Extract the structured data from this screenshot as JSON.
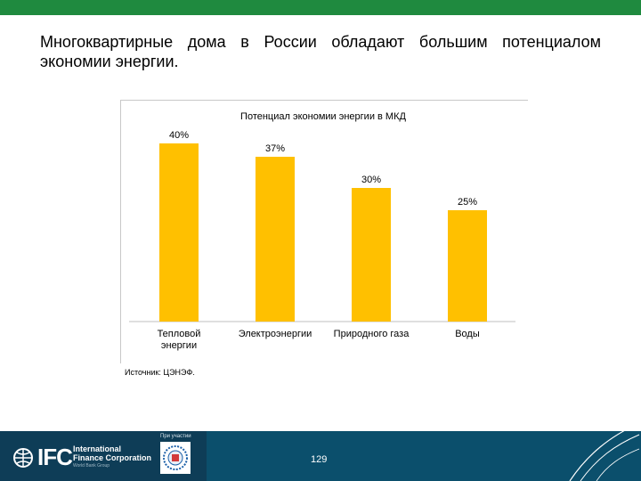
{
  "slide": {
    "title": "Многоквартирные дома в России обладают большим потенциалом экономии энергии.",
    "source": "Источник: ЦЭНЭФ.",
    "page_number": "129"
  },
  "footer": {
    "logo_text": "IFC",
    "org_line1": "International",
    "org_line2": "Finance Corporation",
    "org_sub": "World Bank Group",
    "partner_label": "При участии"
  },
  "colors": {
    "bar": "#FFC000",
    "top_bar": "#1f8a3f",
    "footer": "#0b4f6c"
  },
  "chart_data": {
    "type": "bar",
    "title": "Потенциал экономии энергии в МКД",
    "categories": [
      [
        "Тепловой",
        "энергии"
      ],
      [
        "Электроэнергии"
      ],
      [
        "Природного газа"
      ],
      [
        "Воды"
      ]
    ],
    "values": [
      40,
      37,
      30,
      25
    ],
    "data_labels": [
      "40%",
      "37%",
      "30%",
      "25%"
    ],
    "ylim": [
      0,
      45
    ],
    "grid": false,
    "legend": "none"
  }
}
